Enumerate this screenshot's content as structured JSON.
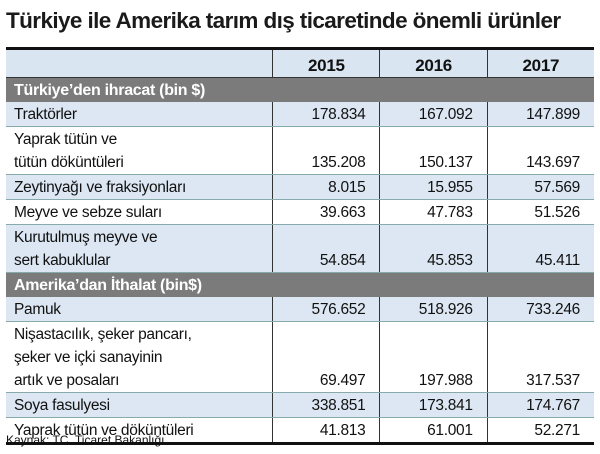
{
  "title": "Türkiye ile Amerika tarım dış ticaretinde önemli ürünler",
  "years": [
    "2015",
    "2016",
    "2017"
  ],
  "sections": [
    {
      "title": "Türkiye’den ihracat  (bin $)",
      "rows": [
        {
          "lines": [
            "Traktörler"
          ],
          "values": [
            "178.834",
            "167.092",
            "147.899"
          ]
        },
        {
          "lines": [
            "Yaprak tütün ve",
            "tütün döküntüleri"
          ],
          "values": [
            "135.208",
            "150.137",
            "143.697"
          ]
        },
        {
          "lines": [
            "Zeytinyağı ve fraksiyonları"
          ],
          "values": [
            "8.015",
            "15.955",
            "57.569"
          ]
        },
        {
          "lines": [
            "Meyve ve sebze suları"
          ],
          "values": [
            "39.663",
            "47.783",
            "51.526"
          ]
        },
        {
          "lines": [
            "Kurutulmuş meyve ve",
            "sert kabuklular"
          ],
          "values": [
            "54.854",
            "45.853",
            "45.411"
          ]
        }
      ]
    },
    {
      "title": "Amerika’dan İthalat (bin$)",
      "rows": [
        {
          "lines": [
            "Pamuk"
          ],
          "values": [
            "576.652",
            "518.926",
            "733.246"
          ]
        },
        {
          "lines": [
            "Nişastacılık, şeker pancarı,",
            "şeker ve içki sanayinin",
            "artık ve posaları"
          ],
          "values": [
            "69.497",
            "197.988",
            "317.537"
          ]
        },
        {
          "lines": [
            "Soya fasulyesi"
          ],
          "values": [
            "338.851",
            "173.841",
            "174.767"
          ]
        },
        {
          "lines": [
            "Yaprak tütün ve döküntüleri"
          ],
          "values": [
            "41.813",
            "61.001",
            "52.271"
          ]
        }
      ]
    }
  ],
  "source": "Kaynak: TC. Ticaret Bakanlığı"
}
